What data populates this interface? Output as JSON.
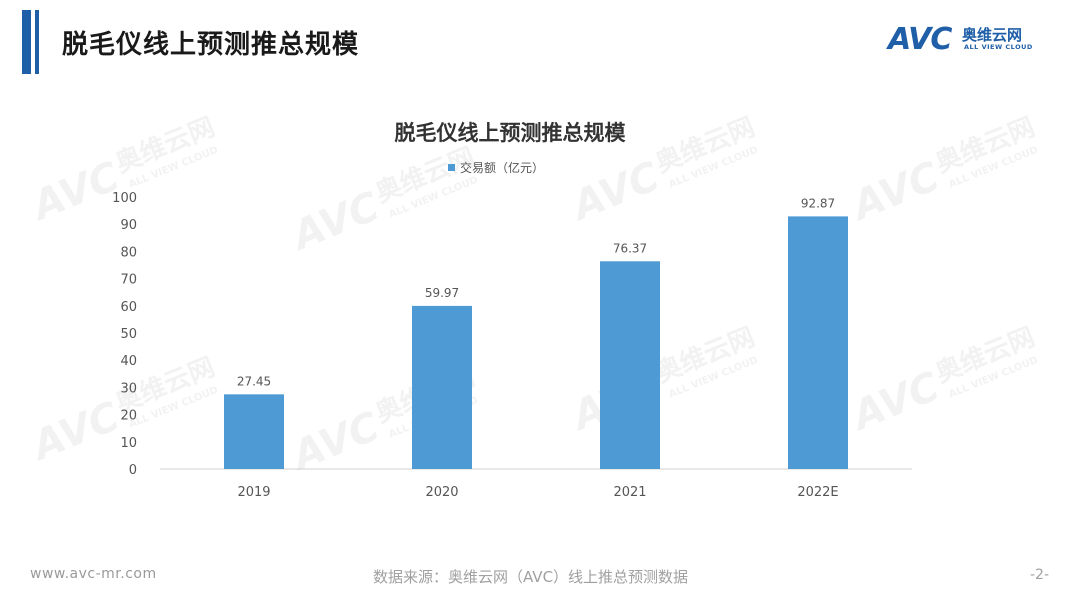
{
  "header": {
    "title": "脱毛仪线上预测推总规模",
    "logo_mark": "AVC",
    "logo_cn": "奥维云网",
    "logo_en": "ALL VIEW CLOUD"
  },
  "colors": {
    "bar": "#4e9ad4",
    "brand": "#1f5fa8",
    "watermark": "#e8e8e8"
  },
  "chart_data": {
    "type": "bar",
    "title": "脱毛仪线上预测推总规模",
    "categories": [
      "2019",
      "2020",
      "2021",
      "2022E"
    ],
    "series": [
      {
        "name": "交易额（亿元）",
        "values": [
          27.45,
          59.97,
          76.37,
          92.87
        ],
        "color": "#4e9ad4"
      }
    ],
    "data_labels": [
      "27.45",
      "59.97",
      "76.37",
      "92.87"
    ],
    "ylim": [
      0,
      100
    ],
    "yticks": [
      "0",
      "10",
      "20",
      "30",
      "40",
      "50",
      "60",
      "70",
      "80",
      "90",
      "100"
    ],
    "legend_position": "top",
    "grid": false
  },
  "footer": {
    "website": "www.avc-mr.com",
    "source": "数据来源：奥维云网（AVC）线上推总预测数据",
    "page": "-2-"
  }
}
